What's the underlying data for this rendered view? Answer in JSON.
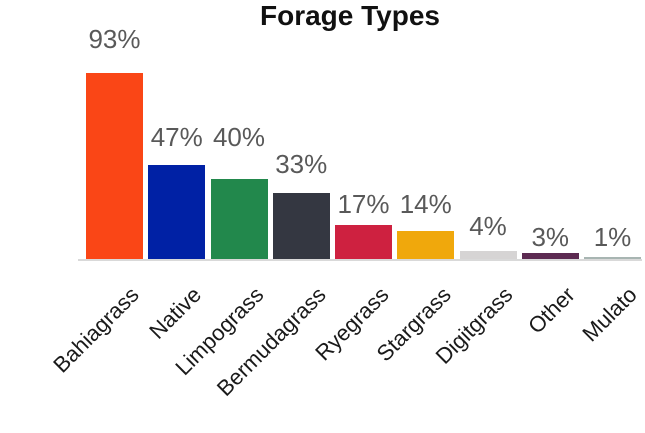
{
  "title": "Forage Types",
  "chart_data": {
    "type": "bar",
    "title": "Forage Types",
    "categories": [
      "Bahiagrass",
      "Native",
      "Limpograss",
      "Bermudagrass",
      "Ryegrass",
      "Stargrass",
      "Digitgrass",
      "Other",
      "Mulato"
    ],
    "values": [
      93,
      47,
      40,
      33,
      17,
      14,
      4,
      3,
      1
    ],
    "value_labels": [
      "93%",
      "47%",
      "40%",
      "33%",
      "17%",
      "14%",
      "4%",
      "3%",
      "1%"
    ],
    "bar_colors": [
      "#FA4616",
      "#0021A5",
      "#22884C",
      "#343741",
      "#CE2140",
      "#F0A80C",
      "#D6D4D4",
      "#5C2A51",
      "#A8B5B2"
    ],
    "unit": "%",
    "ylim": [
      0,
      100
    ],
    "grid": false,
    "legend": "none",
    "value_label_color": "#595959",
    "category_label_color": "#1a1a1a",
    "category_label_rotation_deg": -45,
    "axis_line_color": "#d9d9d9",
    "title_color": "#111111"
  }
}
